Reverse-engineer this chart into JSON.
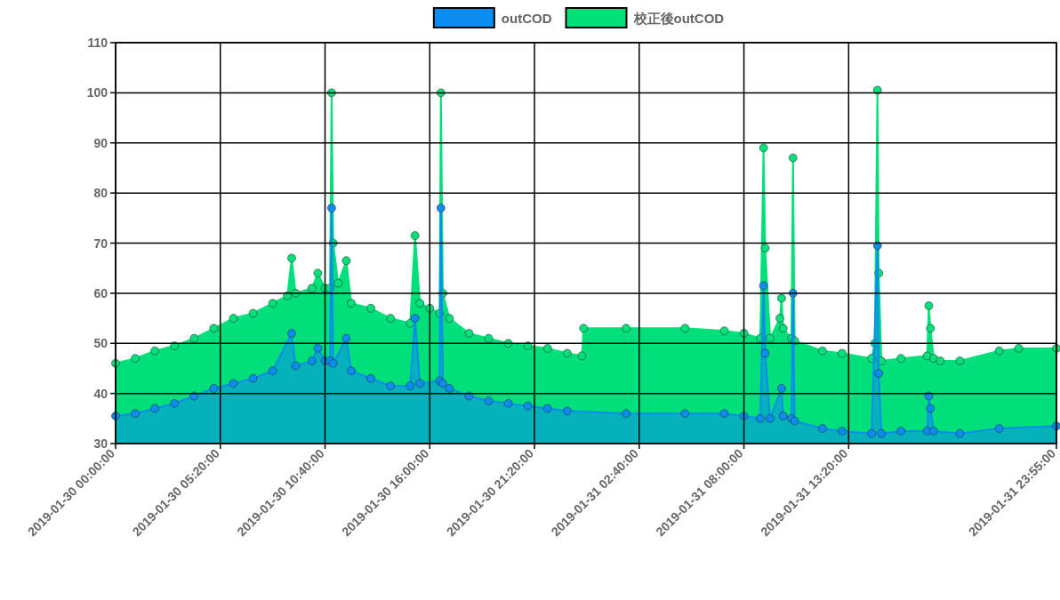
{
  "chart_data": {
    "type": "area",
    "legend": "top",
    "grid": true,
    "marker": "circle",
    "xlim": [
      "2019-01-30T00:00",
      "2019-01-31T23:55"
    ],
    "xticks": [
      {
        "value": "2019-01-30T00:00",
        "label": "2019-01-30 00:00:00"
      },
      {
        "value": "2019-01-30T05:20",
        "label": "2019-01-30 05:20:00"
      },
      {
        "value": "2019-01-30T10:40",
        "label": "2019-01-30 10:40:00"
      },
      {
        "value": "2019-01-30T16:00",
        "label": "2019-01-30 16:00:00"
      },
      {
        "value": "2019-01-30T21:20",
        "label": "2019-01-30 21:20:00"
      },
      {
        "value": "2019-01-31T02:40",
        "label": "2019-01-31 02:40:00"
      },
      {
        "value": "2019-01-31T08:00",
        "label": "2019-01-31 08:00:00"
      },
      {
        "value": "2019-01-31T13:20",
        "label": "2019-01-31 13:20:00"
      },
      {
        "value": "2019-01-31T23:55",
        "label": "2019-01-31 23:55:00"
      }
    ],
    "ylim": [
      30,
      110
    ],
    "yticks": [
      30,
      40,
      50,
      60,
      70,
      80,
      90,
      100,
      110
    ],
    "series": [
      {
        "name": "校正後outCOD",
        "color": "#00e07a",
        "x": [
          "2019-01-30T00:00",
          "2019-01-30T01:00",
          "2019-01-30T02:00",
          "2019-01-30T03:00",
          "2019-01-30T04:00",
          "2019-01-30T05:00",
          "2019-01-30T06:00",
          "2019-01-30T07:00",
          "2019-01-30T08:00",
          "2019-01-30T08:45",
          "2019-01-30T08:58",
          "2019-01-30T09:10",
          "2019-01-30T10:00",
          "2019-01-30T10:18",
          "2019-01-30T10:40",
          "2019-01-30T10:55",
          "2019-01-30T11:00",
          "2019-01-30T11:05",
          "2019-01-30T11:20",
          "2019-01-30T11:45",
          "2019-01-30T12:00",
          "2019-01-30T13:00",
          "2019-01-30T14:00",
          "2019-01-30T15:00",
          "2019-01-30T15:15",
          "2019-01-30T15:30",
          "2019-01-30T16:00",
          "2019-01-30T16:30",
          "2019-01-30T16:34",
          "2019-01-30T16:40",
          "2019-01-30T17:00",
          "2019-01-30T18:00",
          "2019-01-30T19:00",
          "2019-01-30T20:00",
          "2019-01-30T21:00",
          "2019-01-30T22:00",
          "2019-01-30T23:00",
          "2019-01-30T23:45",
          "2019-01-30T23:50",
          "2019-01-31T02:00",
          "2019-01-31T05:00",
          "2019-01-31T07:00",
          "2019-01-31T08:00",
          "2019-01-31T08:50",
          "2019-01-31T09:00",
          "2019-01-31T09:05",
          "2019-01-31T09:20",
          "2019-01-31T09:50",
          "2019-01-31T09:55",
          "2019-01-31T10:00",
          "2019-01-31T10:25",
          "2019-01-31T10:30",
          "2019-01-31T10:35",
          "2019-01-31T12:00",
          "2019-01-31T13:00",
          "2019-01-31T14:30",
          "2019-01-31T14:40",
          "2019-01-31T14:48",
          "2019-01-31T14:52",
          "2019-01-31T15:00",
          "2019-01-31T16:00",
          "2019-01-31T17:20",
          "2019-01-31T17:25",
          "2019-01-31T17:30",
          "2019-01-31T17:40",
          "2019-01-31T18:00",
          "2019-01-31T19:00",
          "2019-01-31T21:00",
          "2019-01-31T22:00",
          "2019-01-31T23:55"
        ],
        "values": [
          46,
          47,
          48.5,
          49.5,
          51,
          53,
          55,
          56,
          58,
          59.5,
          67,
          60,
          61,
          64,
          61,
          61,
          100,
          70,
          62,
          66.5,
          58,
          57,
          55,
          54,
          71.5,
          58,
          57,
          56,
          100,
          60,
          55,
          52,
          51,
          50,
          49.5,
          49,
          48,
          47.5,
          53,
          53,
          53,
          52.5,
          52,
          51,
          89,
          69,
          51,
          55,
          59,
          53,
          51,
          87,
          50.5,
          48.5,
          48,
          47,
          50,
          100.5,
          64,
          46.5,
          47,
          47.5,
          57.5,
          53,
          47,
          46.5,
          46.5,
          48.5,
          49,
          49
        ]
      },
      {
        "name": "outCOD",
        "color": "#0a8cf0",
        "x": [
          "2019-01-30T00:00",
          "2019-01-30T01:00",
          "2019-01-30T02:00",
          "2019-01-30T03:00",
          "2019-01-30T04:00",
          "2019-01-30T05:00",
          "2019-01-30T06:00",
          "2019-01-30T07:00",
          "2019-01-30T08:00",
          "2019-01-30T08:58",
          "2019-01-30T09:10",
          "2019-01-30T10:00",
          "2019-01-30T10:18",
          "2019-01-30T10:40",
          "2019-01-30T10:55",
          "2019-01-30T11:00",
          "2019-01-30T11:05",
          "2019-01-30T11:45",
          "2019-01-30T12:00",
          "2019-01-30T13:00",
          "2019-01-30T14:00",
          "2019-01-30T15:00",
          "2019-01-30T15:15",
          "2019-01-30T15:30",
          "2019-01-30T16:30",
          "2019-01-30T16:34",
          "2019-01-30T16:40",
          "2019-01-30T17:00",
          "2019-01-30T18:00",
          "2019-01-30T19:00",
          "2019-01-30T20:00",
          "2019-01-30T21:00",
          "2019-01-30T22:00",
          "2019-01-30T23:00",
          "2019-01-31T02:00",
          "2019-01-31T05:00",
          "2019-01-31T07:00",
          "2019-01-31T08:00",
          "2019-01-31T08:50",
          "2019-01-31T09:00",
          "2019-01-31T09:05",
          "2019-01-31T09:20",
          "2019-01-31T09:55",
          "2019-01-31T10:00",
          "2019-01-31T10:25",
          "2019-01-31T10:30",
          "2019-01-31T10:35",
          "2019-01-31T12:00",
          "2019-01-31T13:00",
          "2019-01-31T14:30",
          "2019-01-31T14:48",
          "2019-01-31T14:52",
          "2019-01-31T15:00",
          "2019-01-31T16:00",
          "2019-01-31T17:20",
          "2019-01-31T17:25",
          "2019-01-31T17:30",
          "2019-01-31T17:40",
          "2019-01-31T19:00",
          "2019-01-31T21:00",
          "2019-01-31T23:55"
        ],
        "values": [
          35.5,
          36,
          37,
          38,
          39.5,
          41,
          42,
          43,
          44.5,
          52,
          45.5,
          46.5,
          49,
          46.5,
          46.5,
          77,
          46,
          51,
          44.5,
          43,
          41.5,
          41.5,
          55,
          42,
          42.5,
          77,
          42,
          41,
          39.5,
          38.5,
          38,
          37.5,
          37,
          36.5,
          36,
          36,
          36,
          35.5,
          35,
          61.5,
          48,
          35,
          41,
          35.5,
          35,
          60,
          34.5,
          33,
          32.5,
          32,
          69.5,
          44,
          32,
          32.5,
          32.5,
          39.5,
          37,
          32.5,
          32,
          33,
          33.5
        ]
      }
    ]
  }
}
